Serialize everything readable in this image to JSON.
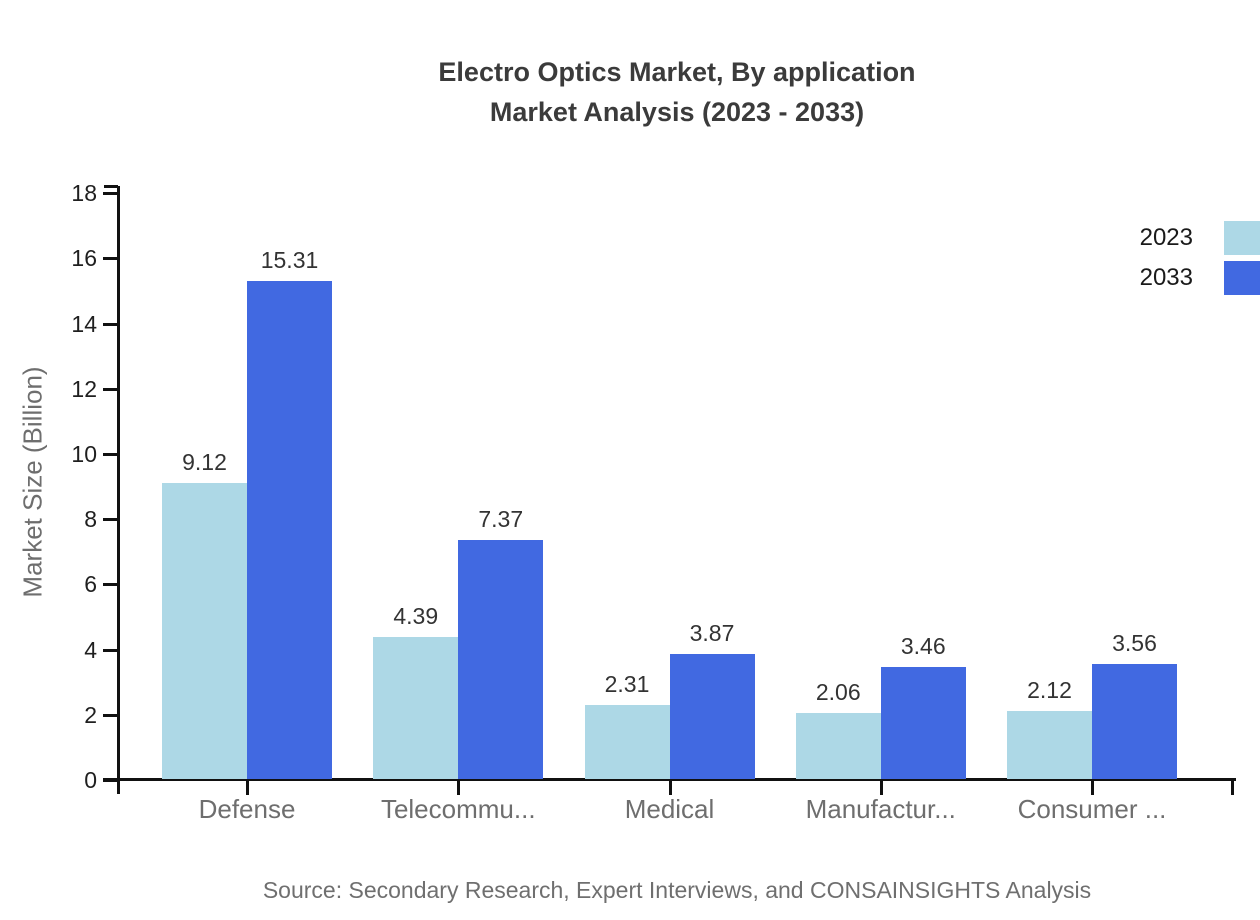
{
  "title": {
    "line1": "Electro Optics Market, By application",
    "line2": "Market Analysis (2023 - 2033)"
  },
  "chart_data": {
    "type": "bar",
    "categories": [
      "Defense",
      "Telecommu...",
      "Medical",
      "Manufactur...",
      "Consumer ..."
    ],
    "series": [
      {
        "name": "2023",
        "color": "#ADD8E6",
        "values": [
          9.12,
          4.39,
          2.31,
          2.06,
          2.12
        ]
      },
      {
        "name": "2033",
        "color": "#4169E1",
        "values": [
          15.31,
          7.37,
          3.87,
          3.46,
          3.56
        ]
      }
    ],
    "xlabel": "",
    "ylabel": "Market Size (Billion)",
    "ylim": [
      0,
      18
    ],
    "ytick_step": 2,
    "grid": false,
    "legend_position": "top-right",
    "value_label_decimals": 2
  },
  "source": "Source: Secondary Research, Expert Interviews, and CONSAINSIGHTS Analysis",
  "colors": {
    "axis": "#111111",
    "tick_label": "#1f1f1f",
    "value_label": "#333333",
    "category_label": "#6e6e6e",
    "title": "#3b3b3b",
    "source": "#6f6f6f"
  }
}
